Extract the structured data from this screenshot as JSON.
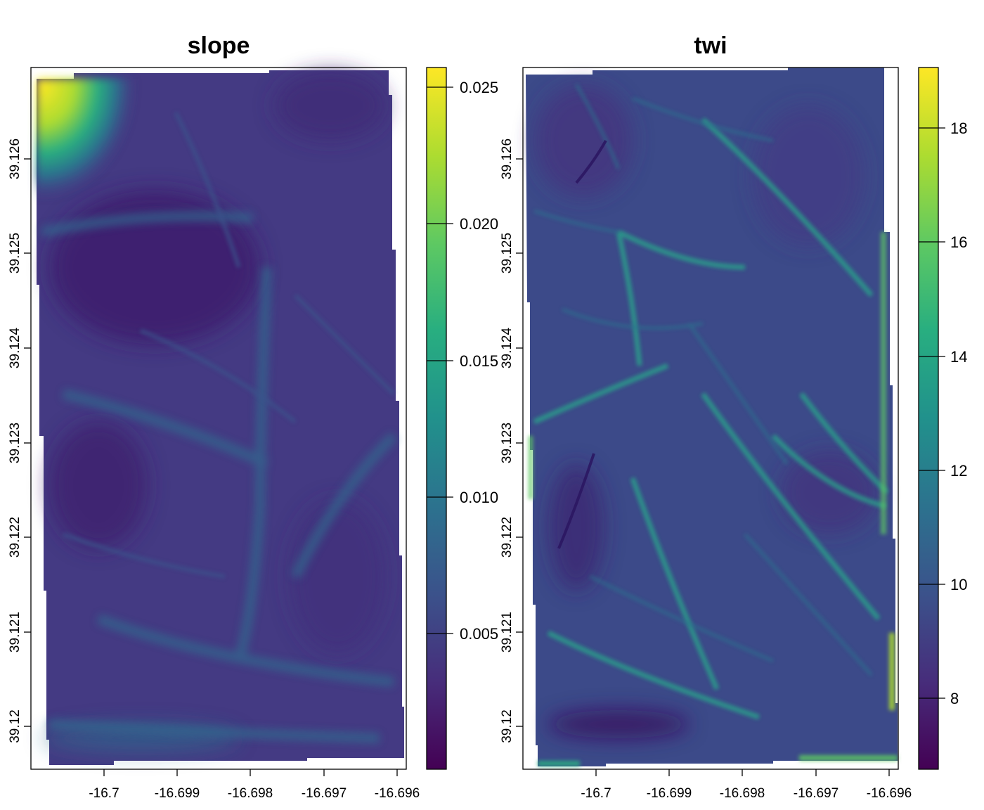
{
  "panels": [
    {
      "id": "slope",
      "title": "slope",
      "x_ticks": [
        "-16.7",
        "-16.699",
        "-16.698",
        "-16.697",
        "-16.696"
      ],
      "y_ticks": [
        "39.12",
        "39.121",
        "39.122",
        "39.123",
        "39.124",
        "39.125",
        "39.126"
      ],
      "colorbar_ticks": [
        "0.005",
        "0.010",
        "0.015",
        "0.020",
        "0.025"
      ]
    },
    {
      "id": "twi",
      "title": "twi",
      "x_ticks": [
        "-16.7",
        "-16.699",
        "-16.698",
        "-16.697",
        "-16.696"
      ],
      "y_ticks": [
        "39.12",
        "39.121",
        "39.122",
        "39.123",
        "39.124",
        "39.125",
        "39.126"
      ],
      "colorbar_ticks": [
        "8",
        "10",
        "12",
        "14",
        "16",
        "18"
      ]
    }
  ],
  "colormap": "viridis",
  "palette": [
    "#440154",
    "#472d7b",
    "#3b528b",
    "#2c728e",
    "#21918c",
    "#28ae80",
    "#5ec962",
    "#addc30",
    "#fde725"
  ]
}
